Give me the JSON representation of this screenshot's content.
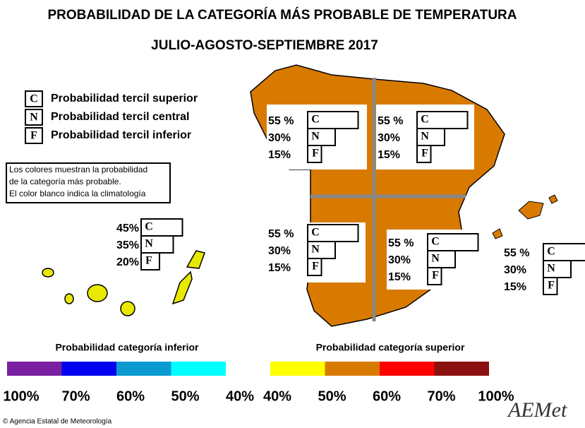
{
  "title": "PROBABILIDAD DE LA CATEGORÍA MÁS PROBABLE DE TEMPERATURA",
  "subtitle": "JULIO-AGOSTO-SEPTIEMBRE 2017",
  "legend": [
    {
      "letter": "C",
      "label": "Probabilidad  tercil superior"
    },
    {
      "letter": "N",
      "label": "Probabilidad  tercil central"
    },
    {
      "letter": "F",
      "label": "Probabilidad  tercil inferior"
    }
  ],
  "note": [
    "Los colores muestran la probabilidad",
    "de la categoría más probable.",
    "El color blanco indica la climatología"
  ],
  "regions": [
    {
      "rows": [
        {
          "label": "55 %",
          "letter": "C",
          "value": 55
        },
        {
          "label": "30%",
          "letter": "N",
          "value": 30
        },
        {
          "label": "15%",
          "letter": "F",
          "value": 15
        }
      ]
    },
    {
      "rows": [
        {
          "label": "55 %",
          "letter": "C",
          "value": 55
        },
        {
          "label": "30%",
          "letter": "N",
          "value": 30
        },
        {
          "label": "15%",
          "letter": "F",
          "value": 15
        }
      ]
    },
    {
      "rows": [
        {
          "label": "55 %",
          "letter": "C",
          "value": 55
        },
        {
          "label": "30%",
          "letter": "N",
          "value": 30
        },
        {
          "label": "15%",
          "letter": "F",
          "value": 15
        }
      ]
    },
    {
      "rows": [
        {
          "label": "55 %",
          "letter": "C",
          "value": 55
        },
        {
          "label": "30%",
          "letter": "N",
          "value": 30
        },
        {
          "label": "15%",
          "letter": "F",
          "value": 15
        }
      ]
    },
    {
      "rows": [
        {
          "label": "55 %",
          "letter": "C",
          "value": 55
        },
        {
          "label": "30%",
          "letter": "N",
          "value": 30
        },
        {
          "label": "15%",
          "letter": "F",
          "value": 15
        }
      ]
    },
    {
      "rows": [
        {
          "label": "45%",
          "letter": "C",
          "value": 45
        },
        {
          "label": "35%",
          "letter": "N",
          "value": 35
        },
        {
          "label": "20%",
          "letter": "F",
          "value": 20
        }
      ]
    }
  ],
  "scales": [
    {
      "title": "Probabilidad categoría inferior",
      "colors": [
        "#7a1fa2",
        "#0000ee",
        "#0a9ad0",
        "#00ffff"
      ],
      "ticks": [
        "100%",
        "70%",
        "60%",
        "50%",
        "40%"
      ]
    },
    {
      "title": "Probabilidad categoría superior",
      "colors": [
        "#ffff00",
        "#d97a00",
        "#ff0000",
        "#8b1010"
      ],
      "ticks": [
        "40%",
        "50%",
        "60%",
        "70%",
        "100%"
      ]
    }
  ],
  "footer": "© Agencia Estatal de Meteorología",
  "logo": "AEMet"
}
